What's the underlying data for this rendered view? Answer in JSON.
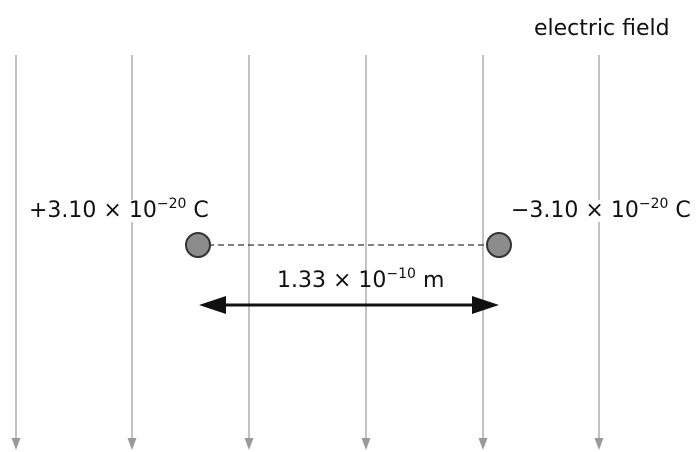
{
  "field_label": "electric field",
  "charge_positive": {
    "sign_and_value": "+3.10 × 10",
    "exponent": "−20",
    "unit": "C"
  },
  "charge_negative": {
    "sign_and_value": "−3.10 × 10",
    "exponent": "−20",
    "unit": "C"
  },
  "separation": {
    "value": "1.33 × 10",
    "exponent": "−10",
    "unit": "m"
  },
  "colors": {
    "field_line": "#9a9a9a",
    "charge_fill": "#8c8c8c",
    "charge_stroke": "#333333",
    "dashed_line": "#333333",
    "arrow": "#111111"
  }
}
